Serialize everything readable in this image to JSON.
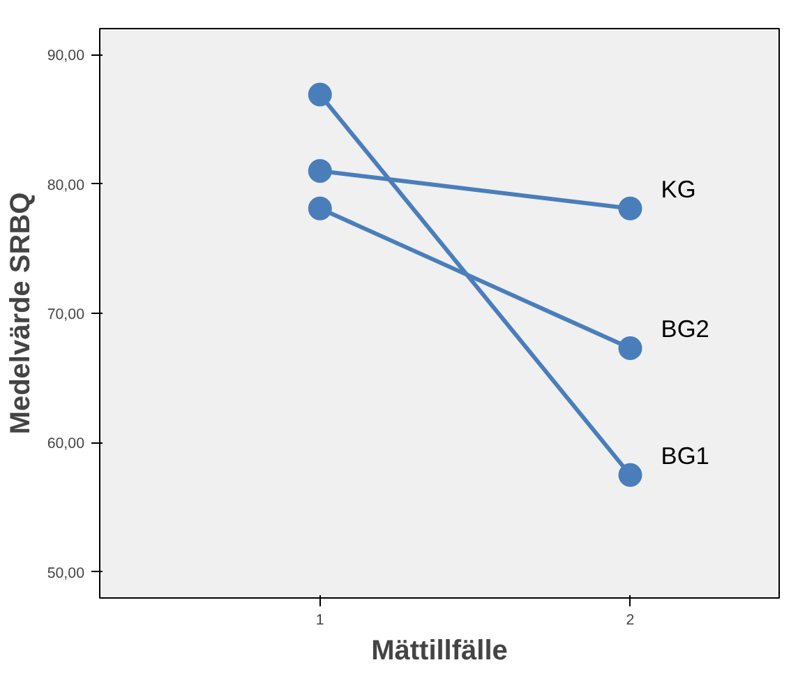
{
  "chart_data": {
    "type": "line",
    "xlabel": "Mättillfälle",
    "ylabel": "Medelvärde SRBQ",
    "x": [
      1,
      2
    ],
    "xlim": [
      0.29,
      2.48
    ],
    "xticks": [
      1,
      2
    ],
    "ylim": [
      48,
      92
    ],
    "yticks": [
      {
        "value": 50,
        "label": "50,00"
      },
      {
        "value": 60,
        "label": "60,00"
      },
      {
        "value": 70,
        "label": "70,00"
      },
      {
        "value": 80,
        "label": "80,00"
      },
      {
        "value": 90,
        "label": "90,00"
      }
    ],
    "grid": false,
    "marker": "circle",
    "line_style": "solid",
    "series": [
      {
        "name": "KG",
        "color": "#4a7ebb",
        "values": [
          81.0,
          78.1
        ]
      },
      {
        "name": "BG2",
        "color": "#4a7ebb",
        "values": [
          78.1,
          67.3
        ]
      },
      {
        "name": "BG1",
        "color": "#4a7ebb",
        "values": [
          86.9,
          57.5
        ]
      }
    ]
  }
}
